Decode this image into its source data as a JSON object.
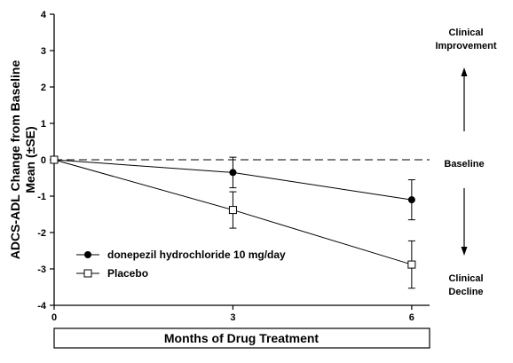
{
  "chart_data": {
    "type": "line",
    "ylabel_line1": "ADCS-ADL Change from Baseline",
    "ylabel_line2": "Mean (±SE)",
    "xlabel": "Months of Drug Treatment",
    "x": [
      0,
      3,
      6
    ],
    "x_ticks": [
      "0",
      "3",
      "6"
    ],
    "y_ticks": [
      "4",
      "3",
      "2",
      "1",
      "0",
      "-1",
      "-2",
      "-3",
      "-4"
    ],
    "ylim": [
      -4,
      4
    ],
    "xlim": [
      0,
      6.3
    ],
    "baseline_value": 0,
    "series": [
      {
        "name": "donepezil hydrochloride 10 mg/day",
        "marker": "filled-circle",
        "values": [
          0,
          -0.35,
          -1.1
        ],
        "errors": [
          0,
          0.42,
          0.55
        ]
      },
      {
        "name": "Placebo",
        "marker": "open-square",
        "values": [
          0,
          -1.38,
          -2.88
        ],
        "errors": [
          0,
          0.5,
          0.65
        ]
      }
    ],
    "annotations": {
      "improvement_line1": "Clinical",
      "improvement_line2": "Improvement",
      "baseline": "Baseline",
      "decline_line1": "Clinical",
      "decline_line2": "Decline"
    }
  }
}
